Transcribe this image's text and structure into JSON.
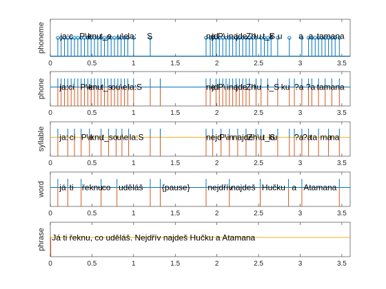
{
  "chart_data": [
    {
      "type": "stem",
      "ylabel": "phoneme",
      "xlim": [
        0,
        3.6
      ],
      "xticks": [
        "0",
        "0.5",
        "1",
        "1.5",
        "2",
        "2.5",
        "3",
        "3.5"
      ],
      "marks": [
        0.09,
        0.13,
        0.17,
        0.21,
        0.25,
        0.29,
        0.33,
        0.37,
        0.41,
        0.45,
        0.49,
        0.53,
        0.57,
        0.61,
        0.65,
        0.69,
        0.73,
        0.77,
        0.81,
        0.85,
        0.89,
        0.93,
        1.0,
        1.2,
        1.87,
        1.92,
        1.95,
        1.99,
        2.03,
        2.07,
        2.11,
        2.15,
        2.19,
        2.23,
        2.27,
        2.31,
        2.35,
        2.39,
        2.43,
        2.47,
        2.53,
        2.57,
        2.61,
        2.65,
        2.73,
        2.87,
        3.02,
        3.1,
        3.14,
        3.18,
        3.22,
        3.26,
        3.3,
        3.34,
        3.38,
        3.42,
        3.47
      ],
      "labels": [
        {
          "x": 0.12,
          "text": "ja:c"
        },
        {
          "x": 0.35,
          "text": "P\\e"
        },
        {
          "x": 0.45,
          "text": "knu"
        },
        {
          "x": 0.6,
          "text": "t_s"
        },
        {
          "x": 0.68,
          "text": "o"
        },
        {
          "x": 0.8,
          "text": "u\\e"
        },
        {
          "x": 0.93,
          "text": "la:"
        },
        {
          "x": 1.16,
          "text": "S"
        },
        {
          "x": 1.87,
          "text": "ne"
        },
        {
          "x": 1.94,
          "text": "jd"
        },
        {
          "x": 2.01,
          "text": "P\\"
        },
        {
          "x": 2.12,
          "text": "ina"
        },
        {
          "x": 2.23,
          "text": "jde"
        },
        {
          "x": 2.35,
          "text": "Zh"
        },
        {
          "x": 2.45,
          "text": "\\u"
        },
        {
          "x": 2.55,
          "text": "t_S"
        },
        {
          "x": 2.63,
          "text": "k"
        },
        {
          "x": 2.73,
          "text": "u"
        },
        {
          "x": 2.98,
          "text": "a"
        },
        {
          "x": 3.1,
          "text": "a"
        },
        {
          "x": 3.2,
          "text": "tamana"
        }
      ]
    },
    {
      "type": "segments",
      "ylabel": "phone",
      "xlim": [
        0,
        3.6
      ],
      "xticks": [
        "0",
        "0.5",
        "1",
        "1.5",
        "2",
        "2.5",
        "3",
        "3.5"
      ],
      "marks": [
        0.09,
        0.13,
        0.17,
        0.21,
        0.25,
        0.29,
        0.33,
        0.37,
        0.41,
        0.45,
        0.49,
        0.53,
        0.57,
        0.61,
        0.65,
        0.69,
        0.73,
        0.77,
        0.81,
        0.85,
        0.89,
        0.93,
        1.0,
        1.2,
        1.32,
        1.87,
        1.92,
        1.99,
        2.03,
        2.07,
        2.11,
        2.15,
        2.19,
        2.23,
        2.27,
        2.31,
        2.35,
        2.39,
        2.47,
        2.53,
        2.61,
        2.73,
        2.87,
        2.93,
        3.02,
        3.1,
        3.14,
        3.22,
        3.3,
        3.38,
        3.47
      ],
      "labels": [
        {
          "x": 0.11,
          "text": "ja:ci"
        },
        {
          "x": 0.36,
          "text": "P\\e"
        },
        {
          "x": 0.46,
          "text": "knu"
        },
        {
          "x": 0.61,
          "text": "t_s"
        },
        {
          "x": 0.73,
          "text": "ou\\e"
        },
        {
          "x": 0.93,
          "text": "la:S"
        },
        {
          "x": 1.87,
          "text": "ne"
        },
        {
          "x": 1.94,
          "text": "jd"
        },
        {
          "x": 2.01,
          "text": "P\\"
        },
        {
          "x": 2.12,
          "text": "ina"
        },
        {
          "x": 2.23,
          "text": "jde"
        },
        {
          "x": 2.35,
          "text": "Zh"
        },
        {
          "x": 2.45,
          "text": "\\u"
        },
        {
          "x": 2.6,
          "text": "t_S"
        },
        {
          "x": 2.77,
          "text": "ku"
        },
        {
          "x": 2.93,
          "text": "?a"
        },
        {
          "x": 3.07,
          "text": "?a"
        },
        {
          "x": 3.2,
          "text": "tamana"
        }
      ]
    },
    {
      "type": "segments",
      "ylabel": "syllable",
      "xlim": [
        0,
        3.6
      ],
      "xticks": [
        "0",
        "0.5",
        "1",
        "1.5",
        "2",
        "2.5",
        "3",
        "3.5"
      ],
      "marks": [
        0.09,
        0.21,
        0.29,
        0.37,
        0.47,
        0.61,
        0.7,
        0.79,
        0.86,
        0.94,
        1.2,
        1.32,
        1.87,
        1.95,
        2.05,
        2.15,
        2.25,
        2.35,
        2.47,
        2.53,
        2.73,
        2.87,
        2.93,
        3.02,
        3.1,
        3.22,
        3.34,
        3.47
      ],
      "labels": [
        {
          "x": 0.11,
          "text": "ja:"
        },
        {
          "x": 0.23,
          "text": "ci"
        },
        {
          "x": 0.37,
          "text": "P\\e"
        },
        {
          "x": 0.48,
          "text": "knu"
        },
        {
          "x": 0.62,
          "text": "t_so"
        },
        {
          "x": 0.8,
          "text": "u\\e"
        },
        {
          "x": 0.95,
          "text": "la:S"
        },
        {
          "x": 1.87,
          "text": "nejd"
        },
        {
          "x": 2.03,
          "text": "P\\in"
        },
        {
          "x": 2.19,
          "text": "najde"
        },
        {
          "x": 2.37,
          "text": "Zh\\u"
        },
        {
          "x": 2.55,
          "text": "t_S"
        },
        {
          "x": 2.62,
          "text": "ku"
        },
        {
          "x": 2.93,
          "text": "?a"
        },
        {
          "x": 3.03,
          "text": "?a"
        },
        {
          "x": 3.12,
          "text": "ta"
        },
        {
          "x": 3.24,
          "text": "ma"
        },
        {
          "x": 3.36,
          "text": "na"
        }
      ]
    },
    {
      "type": "segments",
      "ylabel": "word",
      "xlim": [
        0,
        3.6
      ],
      "xticks": [
        "0",
        "0.5",
        "1",
        "1.5",
        "2",
        "2.5",
        "3",
        "3.5"
      ],
      "marks": [
        0.09,
        0.21,
        0.37,
        0.61,
        0.8,
        1.2,
        1.32,
        1.87,
        2.15,
        2.52,
        2.86,
        3.02,
        3.47
      ],
      "labels": [
        {
          "x": 0.11,
          "text": "já"
        },
        {
          "x": 0.23,
          "text": "ti"
        },
        {
          "x": 0.38,
          "text": "řeknu"
        },
        {
          "x": 0.62,
          "text": "co"
        },
        {
          "x": 0.82,
          "text": "uděláš"
        },
        {
          "x": 1.34,
          "text": "{pause}"
        },
        {
          "x": 1.89,
          "text": "nejdřív"
        },
        {
          "x": 2.17,
          "text": "najdeš"
        },
        {
          "x": 2.54,
          "text": "Hučku"
        },
        {
          "x": 2.9,
          "text": "a"
        },
        {
          "x": 3.04,
          "text": "Atamana"
        }
      ]
    },
    {
      "type": "segments",
      "ylabel": "phrase",
      "xlim": [
        0,
        3.6
      ],
      "xticks": [
        "0",
        "0.5",
        "1",
        "1.5",
        "2",
        "2.5",
        "3",
        "3.5"
      ],
      "marks": [],
      "labels": [
        {
          "x": 0.02,
          "text": "Já ti řeknu, co uděláš. Nejdřív najdeš Hučku a Atamana"
        }
      ]
    }
  ],
  "colors": {
    "stem": "#0072BD",
    "baseline_blue": "#0072BD",
    "baseline_yellow": "#EDB120",
    "segment_red": "#D95319",
    "axis": "#262626"
  }
}
